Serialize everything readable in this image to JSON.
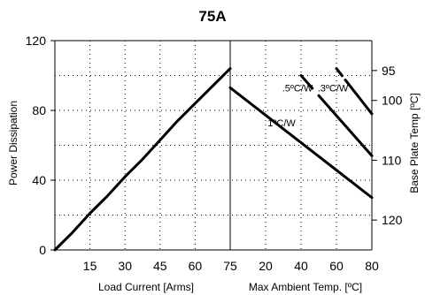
{
  "chart_data": {
    "type": "line",
    "title": "75A",
    "left_panel": {
      "xlabel": "Load Current  [Arms]",
      "ylabel": "Power Dissipation",
      "xlim": [
        0,
        75
      ],
      "ylim": [
        0,
        120
      ],
      "x_ticks": [
        "15",
        "30",
        "45",
        "60",
        "75"
      ],
      "y_ticks": [
        "0",
        "40",
        "80",
        "120"
      ],
      "series": [
        {
          "x": [
            0,
            7.5,
            15,
            22.5,
            30,
            37.5,
            45,
            52.5,
            60,
            67.5,
            75
          ],
          "y": [
            0,
            10,
            21,
            31,
            42,
            52,
            63,
            74,
            84,
            94,
            104
          ]
        }
      ]
    },
    "right_panel": {
      "xlabel": "Max Ambient Temp. [ºC]",
      "ylabel": "Base Plate Temp [ºC]",
      "x_ticks": [
        "20",
        "40",
        "60",
        "80"
      ],
      "xlim": [
        0,
        80
      ],
      "y2_ticks": [
        "95",
        "100",
        "110",
        "120"
      ],
      "y2lim": [
        90,
        125
      ],
      "series": [
        {
          "name": "1ºC/W",
          "x": [
            0,
            80
          ],
          "y": [
            93,
            30
          ],
          "label_at": [
            29,
            71
          ]
        },
        {
          "name": ".5ºC/W",
          "x": [
            40,
            80
          ],
          "y": [
            100,
            54
          ],
          "label_at": [
            38,
            91
          ],
          "style": "dashed-start"
        },
        {
          "name": ".3ºC/W",
          "x": [
            60,
            80
          ],
          "y": [
            104,
            78
          ],
          "label_at": [
            58,
            91
          ],
          "style": "dashed-start"
        }
      ]
    },
    "grid": true,
    "colors": {
      "line": "#000000",
      "background": "#ffffff"
    }
  }
}
